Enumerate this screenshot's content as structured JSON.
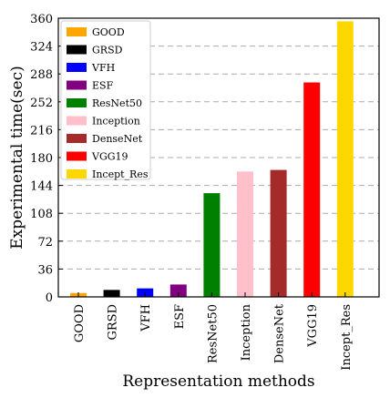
{
  "chart_data": {
    "type": "bar",
    "x_label": "Representation methods",
    "y_label": "Experimental time(sec)",
    "categories": [
      "GOOD",
      "GRSD",
      "VFH",
      "ESF",
      "ResNet50",
      "Inception",
      "DenseNet",
      "VGG19",
      "Incept_Res"
    ],
    "values": [
      5,
      9,
      11,
      16,
      134,
      162,
      164,
      277,
      356
    ],
    "colors": [
      "#ffa500",
      "#000000",
      "#0000ff",
      "#800080",
      "#008000",
      "#ffc0cb",
      "#a52a2a",
      "#ff0000",
      "#ffd700"
    ],
    "ylim": [
      0,
      360
    ],
    "yticks": [
      0,
      36,
      72,
      108,
      144,
      180,
      216,
      252,
      288,
      324,
      360
    ],
    "grid": true,
    "legend": "upper left"
  }
}
